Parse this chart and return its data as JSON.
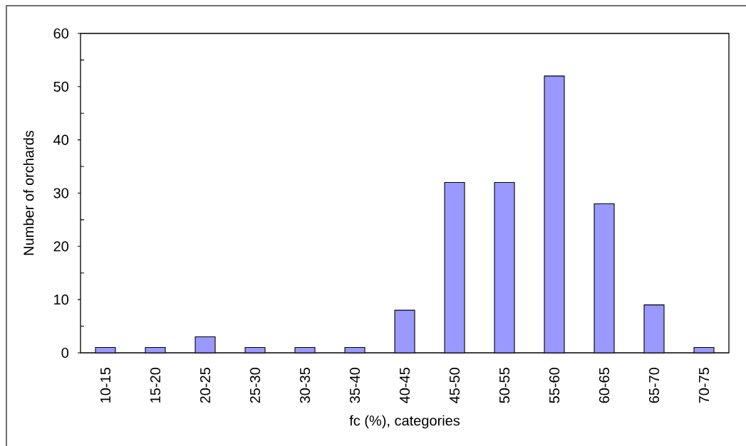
{
  "chart_data": {
    "type": "bar",
    "xlabel": "fc (%), categories",
    "ylabel": "Number of orchards",
    "categories": [
      "10-15",
      "15-20",
      "20-25",
      "25-30",
      "30-35",
      "35-40",
      "40-45",
      "45-50",
      "50-55",
      "55-60",
      "60-65",
      "65-70",
      "70-75"
    ],
    "values": [
      1,
      1,
      3,
      1,
      1,
      1,
      8,
      32,
      32,
      52,
      28,
      9,
      1
    ],
    "color": "#9999ff",
    "ylim": [
      0,
      60
    ],
    "yticks": [
      0,
      {
        "value": 5,
        "label": null
      },
      10,
      {
        "value": 15,
        "label": null
      },
      20,
      {
        "value": 25,
        "label": null
      },
      30,
      {
        "value": 35,
        "label": null
      },
      40,
      {
        "value": 45,
        "label": null
      },
      50,
      {
        "value": 55,
        "label": null
      },
      60
    ]
  }
}
